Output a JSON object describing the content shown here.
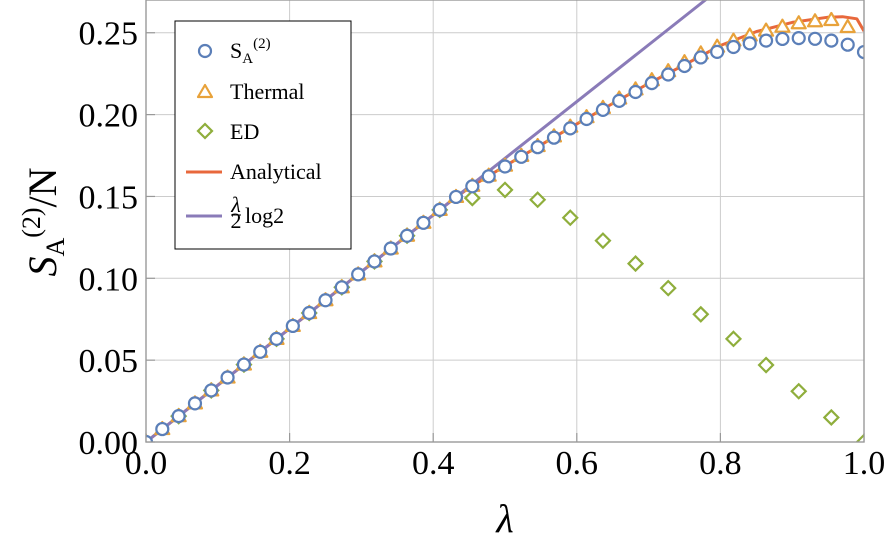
{
  "chart_data": {
    "type": "scatter",
    "xlabel": "λ",
    "ylabel": {
      "base": "S",
      "sub": "A",
      "sup": "(2)",
      "tail": "/N"
    },
    "xlim": [
      0,
      1
    ],
    "ylim": [
      0,
      0.27
    ],
    "x_ticks": [
      0,
      0.2,
      0.4,
      0.6,
      0.8,
      1.0
    ],
    "x_tick_labels": [
      "0.0",
      "0.2",
      "0.4",
      "0.6",
      "0.8",
      "1.0"
    ],
    "y_ticks": [
      0,
      0.05,
      0.1,
      0.15,
      0.2,
      0.25
    ],
    "y_tick_labels": [
      "0.00",
      "0.05",
      "0.10",
      "0.15",
      "0.20",
      "0.25"
    ],
    "grid": true,
    "legend_position": "top-left",
    "series": [
      {
        "name": "S_A^(2)",
        "legend": {
          "base": "S",
          "sub": "A",
          "sup": "(2)"
        },
        "kind": "marker",
        "marker": "circle",
        "color": "#5b7fb8",
        "x": [
          0.0,
          0.0227,
          0.0455,
          0.0682,
          0.0909,
          0.1136,
          0.1364,
          0.1591,
          0.1818,
          0.2045,
          0.2273,
          0.25,
          0.2727,
          0.2955,
          0.3182,
          0.3409,
          0.3636,
          0.3864,
          0.4091,
          0.4318,
          0.4545,
          0.4773,
          0.5,
          0.5227,
          0.5455,
          0.5682,
          0.5909,
          0.6136,
          0.6364,
          0.6591,
          0.6818,
          0.7045,
          0.7273,
          0.75,
          0.7727,
          0.7955,
          0.8182,
          0.8409,
          0.8636,
          0.8864,
          0.9091,
          0.9318,
          0.9545,
          0.9773,
          1.0
        ],
        "y": [
          0.0,
          0.0079,
          0.0158,
          0.0236,
          0.0315,
          0.0394,
          0.0473,
          0.0551,
          0.063,
          0.0709,
          0.0788,
          0.0866,
          0.0945,
          0.1024,
          0.1103,
          0.1182,
          0.126,
          0.1339,
          0.1418,
          0.1497,
          0.1562,
          0.1623,
          0.1683,
          0.1742,
          0.1801,
          0.1859,
          0.1916,
          0.1973,
          0.2029,
          0.2084,
          0.2138,
          0.2192,
          0.2245,
          0.2297,
          0.2349,
          0.2383,
          0.2413,
          0.2435,
          0.2452,
          0.2462,
          0.2467,
          0.2463,
          0.2452,
          0.2427,
          0.2382
        ]
      },
      {
        "name": "Thermal",
        "kind": "marker",
        "marker": "triangle",
        "color": "#e8a23a",
        "x": [
          0.0,
          0.0227,
          0.0455,
          0.0682,
          0.0909,
          0.1136,
          0.1364,
          0.1591,
          0.1818,
          0.2045,
          0.2273,
          0.25,
          0.2727,
          0.2955,
          0.3182,
          0.3409,
          0.3636,
          0.3864,
          0.4091,
          0.4318,
          0.4545,
          0.4773,
          0.5,
          0.5227,
          0.5455,
          0.5682,
          0.5909,
          0.6136,
          0.6364,
          0.6591,
          0.6818,
          0.7045,
          0.7273,
          0.75,
          0.7727,
          0.7955,
          0.8182,
          0.8409,
          0.8636,
          0.8864,
          0.9091,
          0.9318,
          0.9545,
          0.9773
        ],
        "y": [
          0.0,
          0.0079,
          0.0158,
          0.0236,
          0.0315,
          0.0394,
          0.0473,
          0.0551,
          0.063,
          0.0709,
          0.0788,
          0.0866,
          0.0945,
          0.1024,
          0.1103,
          0.1182,
          0.126,
          0.1339,
          0.1418,
          0.1497,
          0.1565,
          0.1627,
          0.1688,
          0.1748,
          0.1808,
          0.1867,
          0.1926,
          0.1984,
          0.2041,
          0.2098,
          0.2154,
          0.221,
          0.2265,
          0.232,
          0.2374,
          0.2415,
          0.2452,
          0.2483,
          0.2513,
          0.2537,
          0.2558,
          0.257,
          0.2578,
          0.2535
        ]
      },
      {
        "name": "ED",
        "kind": "marker",
        "marker": "diamond",
        "color": "#8fae3c",
        "x": [
          0.0455,
          0.0909,
          0.1364,
          0.1818,
          0.2273,
          0.2727,
          0.3182,
          0.3636,
          0.4091,
          0.4545,
          0.5,
          0.5455,
          0.5909,
          0.6364,
          0.6818,
          0.7273,
          0.7727,
          0.8182,
          0.8636,
          0.9091,
          0.9545,
          1.0
        ],
        "y": [
          0.0158,
          0.0315,
          0.0473,
          0.063,
          0.0788,
          0.0945,
          0.1103,
          0.126,
          0.1418,
          0.149,
          0.154,
          0.148,
          0.137,
          0.123,
          0.109,
          0.094,
          0.078,
          0.063,
          0.047,
          0.031,
          0.015,
          0.0
        ]
      },
      {
        "name": "Analytical",
        "kind": "line",
        "color": "#e8683c",
        "x": [
          0.0,
          0.1,
          0.2,
          0.3,
          0.4,
          0.43,
          0.45,
          0.5,
          0.55,
          0.6,
          0.65,
          0.7,
          0.75,
          0.8,
          0.85,
          0.9,
          0.95,
          0.97,
          0.99,
          1.0
        ],
        "y": [
          0.0,
          0.0347,
          0.0693,
          0.104,
          0.1386,
          0.149,
          0.1552,
          0.1686,
          0.1815,
          0.1943,
          0.2068,
          0.219,
          0.2304,
          0.2422,
          0.2507,
          0.2563,
          0.2595,
          0.2598,
          0.2585,
          0.251
        ]
      },
      {
        "name": "λ/2 log2",
        "legend": {
          "frac_num": "λ",
          "frac_den": "2",
          "tail": "log2"
        },
        "kind": "line",
        "color": "#8a7bb8",
        "x": [
          0.0,
          0.78
        ],
        "y": [
          0.0,
          0.2703
        ]
      }
    ]
  }
}
